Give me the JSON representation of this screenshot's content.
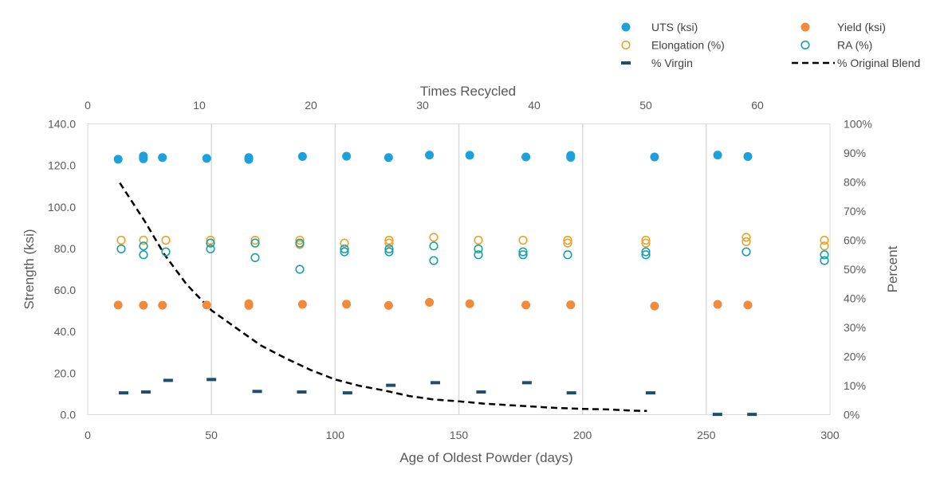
{
  "chart_data": {
    "type": "scatter",
    "x_bottom": {
      "label": "Age of Oldest Powder (days)",
      "range": [
        0,
        300
      ],
      "ticks": [
        "0",
        "50",
        "100",
        "150",
        "200",
        "250",
        "300"
      ]
    },
    "x_top": {
      "label": "Times Recycled",
      "range": [
        0,
        66.5
      ],
      "ticks": [
        "0",
        "10",
        "20",
        "30",
        "40",
        "50",
        "60"
      ]
    },
    "y_left": {
      "label": "Strength (ksi)",
      "range": [
        0,
        140
      ],
      "ticks": [
        "0.0",
        "20.0",
        "40.0",
        "60.0",
        "80.0",
        "100.0",
        "120.0",
        "140.0"
      ]
    },
    "y_right": {
      "label": "Percent",
      "range": [
        0,
        100
      ],
      "ticks": [
        "0%",
        "10%",
        "20%",
        "30%",
        "40%",
        "50%",
        "60%",
        "70%",
        "80%",
        "90%",
        "100%"
      ]
    },
    "gridlines": {
      "vertical_x": [
        50,
        100,
        150,
        200,
        250
      ]
    },
    "legend_position": "top-right",
    "series": [
      {
        "name": "UTS (ksi)",
        "marker": "filled-circle",
        "color": "#1BA1DB",
        "x_axis": "bottom",
        "y_axis": "left",
        "points": [
          [
            12.3,
            123.0
          ],
          [
            22.5,
            124.5
          ],
          [
            22.5,
            123.2
          ],
          [
            30.2,
            123.8
          ],
          [
            48.1,
            123.4
          ],
          [
            65.1,
            123.8
          ],
          [
            65.1,
            122.9
          ],
          [
            86.8,
            124.3
          ],
          [
            104.6,
            124.4
          ],
          [
            121.6,
            123.8
          ],
          [
            138.1,
            125.0
          ],
          [
            154.4,
            124.9
          ],
          [
            177.1,
            124.1
          ],
          [
            195.2,
            124.8
          ],
          [
            195.2,
            123.9
          ],
          [
            229.1,
            124.1
          ],
          [
            254.6,
            125.0
          ],
          [
            266.8,
            124.3
          ]
        ]
      },
      {
        "name": "Yield (ksi)",
        "marker": "filled-circle",
        "color": "#F08A3C",
        "x_axis": "bottom",
        "y_axis": "left",
        "points": [
          [
            12.3,
            52.8
          ],
          [
            22.5,
            52.7
          ],
          [
            30.2,
            52.7
          ],
          [
            48.1,
            52.8
          ],
          [
            65.1,
            53.4
          ],
          [
            65.1,
            52.6
          ],
          [
            86.8,
            53.1
          ],
          [
            104.6,
            53.2
          ],
          [
            121.6,
            52.6
          ],
          [
            138.1,
            54.1
          ],
          [
            154.4,
            53.4
          ],
          [
            177.1,
            52.8
          ],
          [
            195.2,
            52.9
          ],
          [
            229.1,
            52.3
          ],
          [
            254.6,
            53.1
          ],
          [
            266.8,
            52.8
          ]
        ]
      },
      {
        "name": "Elongation (%)",
        "marker": "open-circle",
        "color": "#E8A32F",
        "x_axis": "top",
        "y_axis": "right",
        "points": [
          [
            3,
            60.0
          ],
          [
            5,
            60.0
          ],
          [
            7,
            60.0
          ],
          [
            11,
            60.0
          ],
          [
            15,
            60.0
          ],
          [
            19,
            60.0
          ],
          [
            19,
            58.5
          ],
          [
            23,
            59.0
          ],
          [
            27,
            60.0
          ],
          [
            27,
            59.0
          ],
          [
            31,
            61.0
          ],
          [
            35,
            60.0
          ],
          [
            39,
            60.0
          ],
          [
            43,
            60.0
          ],
          [
            43,
            59.0
          ],
          [
            50,
            60.0
          ],
          [
            50,
            59.0
          ],
          [
            59,
            61.0
          ],
          [
            59,
            59.5
          ],
          [
            66,
            60.0
          ],
          [
            66,
            58.0
          ]
        ]
      },
      {
        "name": "RA (%)",
        "marker": "open-circle",
        "color": "#1A9FA8",
        "x_axis": "top",
        "y_axis": "right",
        "points": [
          [
            3,
            57.0
          ],
          [
            5,
            58.0
          ],
          [
            5,
            55.0
          ],
          [
            7,
            56.0
          ],
          [
            11,
            59.0
          ],
          [
            11,
            57.0
          ],
          [
            15,
            59.0
          ],
          [
            15,
            54.0
          ],
          [
            19,
            59.0
          ],
          [
            19,
            50.0
          ],
          [
            23,
            57.0
          ],
          [
            23,
            56.0
          ],
          [
            27,
            57.0
          ],
          [
            27,
            56.0
          ],
          [
            31,
            58.0
          ],
          [
            31,
            53.0
          ],
          [
            35,
            57.0
          ],
          [
            35,
            55.0
          ],
          [
            39,
            56.0
          ],
          [
            39,
            55.0
          ],
          [
            43,
            55.0
          ],
          [
            50,
            56.0
          ],
          [
            50,
            55.0
          ],
          [
            59,
            56.0
          ],
          [
            66,
            55.0
          ],
          [
            66,
            53.0
          ]
        ]
      },
      {
        "name": "% Virgin",
        "marker": "dash",
        "color": "#1F4E6B",
        "x_axis": "bottom",
        "y_axis": "right",
        "points": [
          [
            14.5,
            7.5
          ],
          [
            23.5,
            7.8
          ],
          [
            32.5,
            11.8
          ],
          [
            50.0,
            12.1
          ],
          [
            68.5,
            8.0
          ],
          [
            86.5,
            7.8
          ],
          [
            105.0,
            7.5
          ],
          [
            122.5,
            10.1
          ],
          [
            140.5,
            11.0
          ],
          [
            159.0,
            7.8
          ],
          [
            177.5,
            11.0
          ],
          [
            195.5,
            7.5
          ],
          [
            227.5,
            7.5
          ],
          [
            254.5,
            0.1
          ],
          [
            268.5,
            0.1
          ]
        ]
      },
      {
        "name": "% Original Blend",
        "marker": "dashed-line",
        "color": "#000000",
        "x_axis": "bottom",
        "y_axis": "right",
        "points": [
          [
            13,
            79.7
          ],
          [
            23,
            66.6
          ],
          [
            31,
            55.1
          ],
          [
            40,
            44.8
          ],
          [
            50,
            35.9
          ],
          [
            60,
            29.8
          ],
          [
            70,
            23.8
          ],
          [
            80,
            19.4
          ],
          [
            90,
            15.4
          ],
          [
            100,
            12.1
          ],
          [
            110,
            9.9
          ],
          [
            120,
            8.3
          ],
          [
            130,
            6.4
          ],
          [
            140,
            5.2
          ],
          [
            150,
            4.6
          ],
          [
            160,
            3.8
          ],
          [
            170,
            3.3
          ],
          [
            180,
            2.8
          ],
          [
            190,
            2.3
          ],
          [
            200,
            2.0
          ],
          [
            210,
            1.8
          ],
          [
            220,
            1.4
          ],
          [
            226,
            1.3
          ]
        ]
      }
    ]
  }
}
